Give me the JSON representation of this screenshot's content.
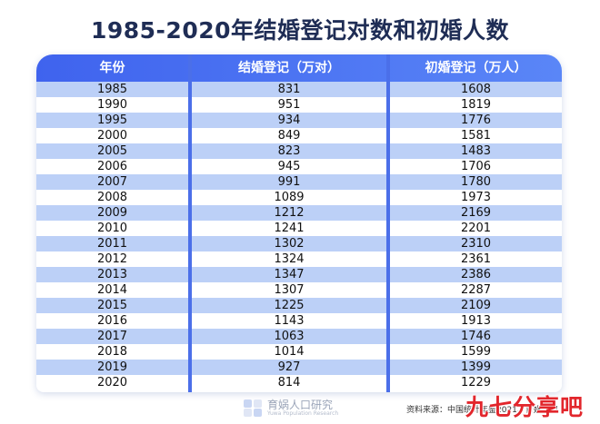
{
  "chart_data": {
    "type": "table",
    "title": "1985-2020年结婚登记对数和初婚人数",
    "columns": [
      "年份",
      "结婚登记（万对）",
      "初婚登记（万人）"
    ],
    "rows": [
      [
        "1985",
        "831",
        "1608"
      ],
      [
        "1990",
        "951",
        "1819"
      ],
      [
        "1995",
        "934",
        "1776"
      ],
      [
        "2000",
        "849",
        "1581"
      ],
      [
        "2005",
        "823",
        "1483"
      ],
      [
        "2006",
        "945",
        "1706"
      ],
      [
        "2007",
        "991",
        "1780"
      ],
      [
        "2008",
        "1089",
        "1973"
      ],
      [
        "2009",
        "1212",
        "2169"
      ],
      [
        "2010",
        "1241",
        "2201"
      ],
      [
        "2011",
        "1302",
        "2310"
      ],
      [
        "2012",
        "1324",
        "2361"
      ],
      [
        "2013",
        "1347",
        "2386"
      ],
      [
        "2014",
        "1307",
        "2287"
      ],
      [
        "2015",
        "1225",
        "2109"
      ],
      [
        "2016",
        "1143",
        "1913"
      ],
      [
        "2017",
        "1063",
        "1746"
      ],
      [
        "2018",
        "1014",
        "1599"
      ],
      [
        "2019",
        "927",
        "1399"
      ],
      [
        "2020",
        "814",
        "1229"
      ]
    ]
  },
  "colors": {
    "header_bg": "#4a70f0",
    "stripe": "#bcd0f7",
    "divider": "#4b6fe9",
    "title": "#1f2d55",
    "watermark": "#e2262c"
  },
  "footer": {
    "logo_text": "育娲人口研究",
    "logo_sub": "Yuwa Population Research",
    "source": "资料来源：中国统计年鉴2021、育娲人口",
    "watermark": "九七分享吧"
  }
}
